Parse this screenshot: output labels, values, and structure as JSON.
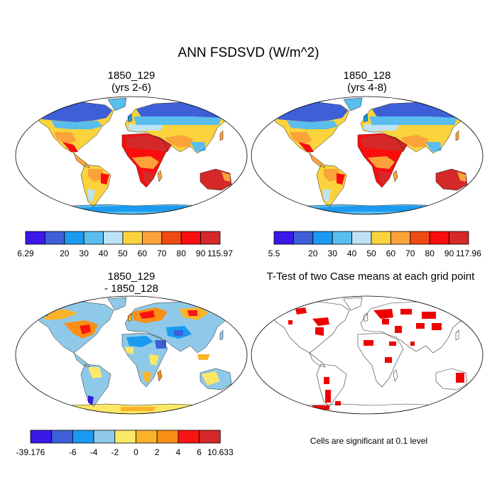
{
  "main_title": "ANN FSDSVD (W/m^2)",
  "panels": [
    {
      "title_line1": "1850_129",
      "title_line2": "(yrs 2-6)"
    },
    {
      "title_line1": "1850_128",
      "title_line2": "(yrs 4-8)"
    },
    {
      "title_line1": "1850_129",
      "title_line2": "- 1850_128"
    },
    {
      "title_line1": "T-Test of two Case means at each grid point",
      "title_line2": ""
    }
  ],
  "colorbars": [
    {
      "colors": [
        "#3b17e8",
        "#3d60d8",
        "#1a9af0",
        "#59bdee",
        "#bde3f5",
        "#fbd33c",
        "#fba33a",
        "#f04a14",
        "#f90d0d",
        "#d52828"
      ],
      "labels": [
        "6.29",
        "20",
        "30",
        "40",
        "50",
        "60",
        "70",
        "80",
        "90",
        "115.97"
      ]
    },
    {
      "colors": [
        "#3b17e8",
        "#3d60d8",
        "#1a9af0",
        "#59bdee",
        "#bde3f5",
        "#fbd33c",
        "#fba33a",
        "#f04a14",
        "#f90d0d",
        "#d52828"
      ],
      "labels": [
        "5.5",
        "20",
        "30",
        "40",
        "50",
        "60",
        "70",
        "80",
        "90",
        "117.96"
      ]
    },
    {
      "colors": [
        "#3b17e8",
        "#3d60d8",
        "#1a9af0",
        "#8fc9ea",
        "#fbe866",
        "#fbb32a",
        "#fb8f14",
        "#f91414",
        "#d52828"
      ],
      "labels": [
        "-39.176",
        "-6",
        "-4",
        "-2",
        "0",
        "2",
        "4",
        "6",
        "10.633"
      ]
    }
  ],
  "note": "Cells are significant at 0.1 level",
  "significance_color": "#ee0000"
}
